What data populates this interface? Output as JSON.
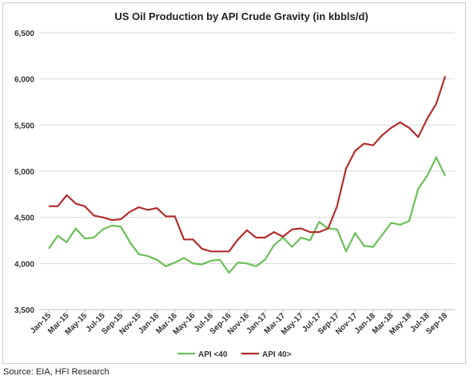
{
  "chart_data": {
    "type": "line",
    "title": "US Oil Production by API Crude Gravity (in kbbls/d)",
    "xlabel": "",
    "ylabel": "",
    "ylim": [
      3500,
      6500
    ],
    "yticks": [
      3500,
      4000,
      4500,
      5000,
      5500,
      6000,
      6500
    ],
    "ytick_labels": [
      "3,500",
      "4,000",
      "4,500",
      "5,000",
      "5,500",
      "6,000",
      "6,500"
    ],
    "x": [
      "Jan-15",
      "Feb-15",
      "Mar-15",
      "Apr-15",
      "May-15",
      "Jun-15",
      "Jul-15",
      "Aug-15",
      "Sep-15",
      "Oct-15",
      "Nov-15",
      "Dec-15",
      "Jan-16",
      "Feb-16",
      "Mar-16",
      "Apr-16",
      "May-16",
      "Jun-16",
      "Jul-16",
      "Aug-16",
      "Sep-16",
      "Oct-16",
      "Nov-16",
      "Dec-16",
      "Jan-17",
      "Feb-17",
      "Mar-17",
      "Apr-17",
      "May-17",
      "Jun-17",
      "Jul-17",
      "Aug-17",
      "Sep-17",
      "Oct-17",
      "Nov-17",
      "Dec-17",
      "Jan-18",
      "Feb-18",
      "Mar-18",
      "Apr-18",
      "May-18",
      "Jun-18",
      "Jul-18",
      "Aug-18",
      "Sep-18"
    ],
    "x_tick_labels": [
      "Jan-15",
      "Mar-15",
      "May-15",
      "Jul-15",
      "Sep-15",
      "Nov-15",
      "Jan-16",
      "Mar-16",
      "May-16",
      "Jul-16",
      "Sep-16",
      "Nov-16",
      "Jan-17",
      "Mar-17",
      "May-17",
      "Jul-17",
      "Sep-17",
      "Nov-17",
      "Jan-18",
      "Mar-18",
      "May-18",
      "Jul-18",
      "Sep-18"
    ],
    "grid": true,
    "legend_position": "bottom",
    "series": [
      {
        "name": "API <40",
        "color": "#6bbf59",
        "values": [
          4160,
          4300,
          4230,
          4380,
          4270,
          4280,
          4370,
          4410,
          4400,
          4230,
          4100,
          4080,
          4040,
          3970,
          4010,
          4060,
          4000,
          3990,
          4030,
          4040,
          3900,
          4010,
          4000,
          3970,
          4040,
          4200,
          4280,
          4180,
          4280,
          4250,
          4450,
          4380,
          4370,
          4130,
          4330,
          4190,
          4180,
          4310,
          4440,
          4420,
          4460,
          4810,
          4950,
          5150,
          4950
        ]
      },
      {
        "name": "API 40>",
        "color": "#b22e2e",
        "values": [
          4620,
          4620,
          4740,
          4650,
          4620,
          4520,
          4500,
          4470,
          4480,
          4560,
          4610,
          4580,
          4600,
          4510,
          4510,
          4260,
          4260,
          4160,
          4130,
          4130,
          4130,
          4260,
          4360,
          4280,
          4280,
          4340,
          4290,
          4370,
          4380,
          4340,
          4340,
          4380,
          4620,
          5030,
          5220,
          5300,
          5280,
          5390,
          5470,
          5530,
          5470,
          5370,
          5570,
          5730,
          6030
        ]
      }
    ]
  },
  "source_text": "Source: EIA, HFI Research"
}
